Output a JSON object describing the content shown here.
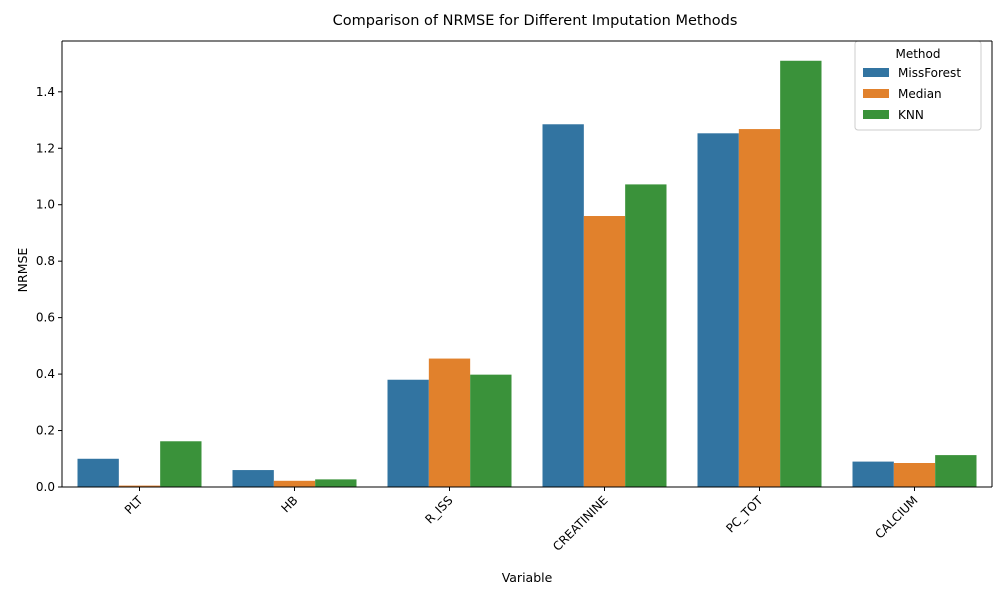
{
  "chart_data": {
    "type": "bar",
    "title": "Comparison of NRMSE for Different Imputation Methods",
    "xlabel": "Variable",
    "ylabel": "NRMSE",
    "categories": [
      "PLT",
      "HB",
      "R_ISS",
      "CREATININE",
      "PC_TOT",
      "CALCIUM"
    ],
    "series": [
      {
        "name": "MissForest",
        "color": "#3274a1",
        "values": [
          0.1,
          0.06,
          0.38,
          1.285,
          1.253,
          0.09
        ]
      },
      {
        "name": "Median",
        "color": "#e1812c",
        "values": [
          0.005,
          0.022,
          0.455,
          0.96,
          1.268,
          0.085
        ]
      },
      {
        "name": "KNN",
        "color": "#3a923a",
        "values": [
          0.162,
          0.027,
          0.398,
          1.072,
          1.51,
          0.113
        ]
      }
    ],
    "ylim": [
      0,
      1.58
    ],
    "yticks": [
      "0.0",
      "0.2",
      "0.4",
      "0.6",
      "0.8",
      "1.0",
      "1.2",
      "1.4"
    ],
    "legend": {
      "title": "Method",
      "position": "top-right"
    },
    "grid": false
  }
}
